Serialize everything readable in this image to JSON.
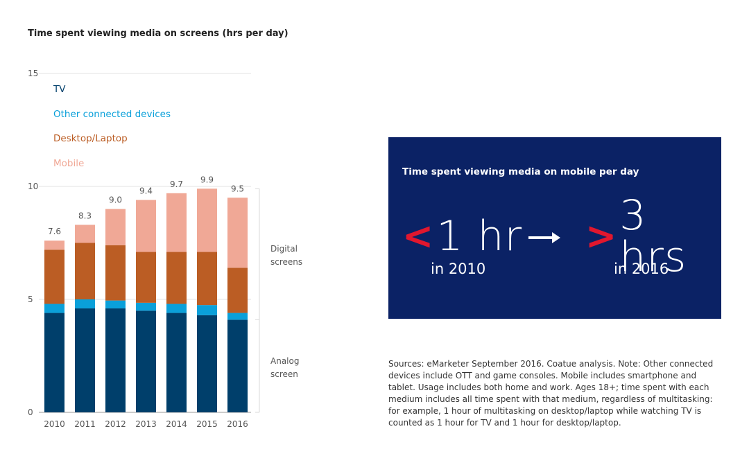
{
  "colors": {
    "tv": "#003f6b",
    "other": "#0aa0da",
    "desktop": "#bb5d24",
    "mobile": "#f0a896",
    "panel_bg": "#0b2265",
    "accent_red": "#e1172e"
  },
  "chart_data": {
    "type": "bar",
    "stacked": true,
    "title": "Time spent viewing media on screens (hrs per day)",
    "categories": [
      "2010",
      "2011",
      "2012",
      "2013",
      "2014",
      "2015",
      "2016"
    ],
    "series": [
      {
        "name": "TV",
        "values": [
          4.4,
          4.6,
          4.6,
          4.5,
          4.4,
          4.3,
          4.1
        ]
      },
      {
        "name": "Other connected devices",
        "values": [
          0.4,
          0.4,
          0.35,
          0.35,
          0.4,
          0.45,
          0.3
        ]
      },
      {
        "name": "Desktop/Laptop",
        "values": [
          2.4,
          2.5,
          2.45,
          2.25,
          2.3,
          2.35,
          2.0
        ]
      },
      {
        "name": "Mobile",
        "values": [
          0.4,
          0.8,
          1.6,
          2.3,
          2.6,
          2.8,
          3.1
        ]
      }
    ],
    "totals": [
      "7.6",
      "8.3",
      "9.0",
      "9.4",
      "9.7",
      "9.9",
      "9.5"
    ],
    "ylim": [
      0,
      15
    ],
    "yticks": [
      "0",
      "5",
      "10",
      "15"
    ],
    "legend": [
      "TV",
      "Other connected devices",
      "Desktop/Laptop",
      "Mobile"
    ],
    "legend_position": "top-left",
    "grid": true,
    "annotations": {
      "digital": [
        "Digital",
        "screens"
      ],
      "analog": [
        "Analog",
        "screen"
      ]
    }
  },
  "panel": {
    "title": "Time spent viewing media on mobile per day",
    "left_symbol": "<",
    "left_value": "1 hr",
    "left_sub": "in 2010",
    "right_symbol": ">",
    "right_value": "3 hrs",
    "right_sub": "in 2016"
  },
  "sources": "Sources: eMarketer September 2016. Coatue analysis. Note: Other connected devices include OTT and game consoles. Mobile includes smartphone and tablet. Usage includes both home and work. Ages 18+; time spent with each medium includes all time spent with that medium, regardless of multitasking: for example, 1 hour of multitasking on desktop/laptop while watching TV is counted as 1 hour for TV and 1 hour for desktop/laptop."
}
